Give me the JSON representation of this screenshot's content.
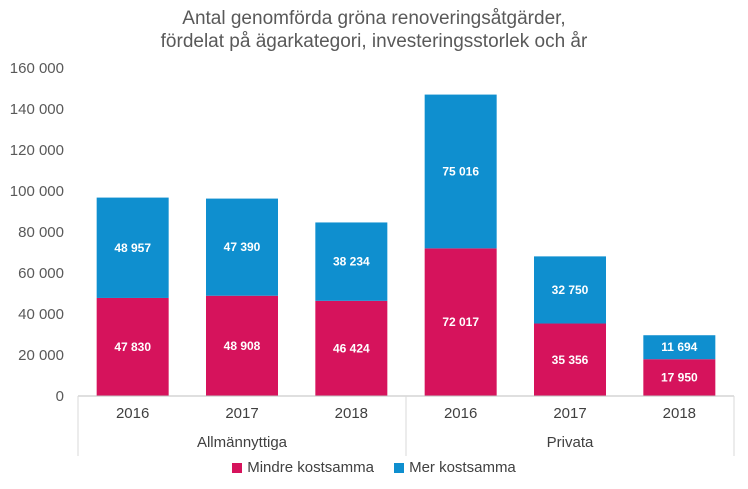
{
  "chart_data": {
    "type": "stacked-bar",
    "title_line1": "Antal genomförda gröna renoveringsåtgärder,",
    "title_line2": "fördelat på ägarkategori, investeringsstorlek och år",
    "categories": [
      "2016",
      "2017",
      "2018",
      "2016",
      "2017",
      "2018"
    ],
    "groups": [
      {
        "label": "Allmännyttiga",
        "span": [
          0,
          2
        ]
      },
      {
        "label": "Privata",
        "span": [
          3,
          5
        ]
      }
    ],
    "series": [
      {
        "name": "Mindre kostsamma",
        "color": "#D6135C",
        "values": [
          47830,
          48908,
          46424,
          72017,
          35356,
          17950
        ],
        "labels": [
          "47 830",
          "48 908",
          "46 424",
          "72 017",
          "35 356",
          "17 950"
        ]
      },
      {
        "name": "Mer kostsamma",
        "color": "#0F8FCF",
        "values": [
          48957,
          47390,
          38234,
          75016,
          32750,
          11694
        ],
        "labels": [
          "48 957",
          "47 390",
          "38 234",
          "75 016",
          "32 750",
          "11 694"
        ]
      }
    ],
    "y_ticks": [
      0,
      20000,
      40000,
      60000,
      80000,
      100000,
      120000,
      140000,
      160000
    ],
    "y_tick_labels": [
      "0",
      "20 000",
      "40 000",
      "60 000",
      "80 000",
      "100 000",
      "120 000",
      "140 000",
      "160 000"
    ],
    "ylim": [
      0,
      160000
    ],
    "legend_position": "bottom"
  }
}
